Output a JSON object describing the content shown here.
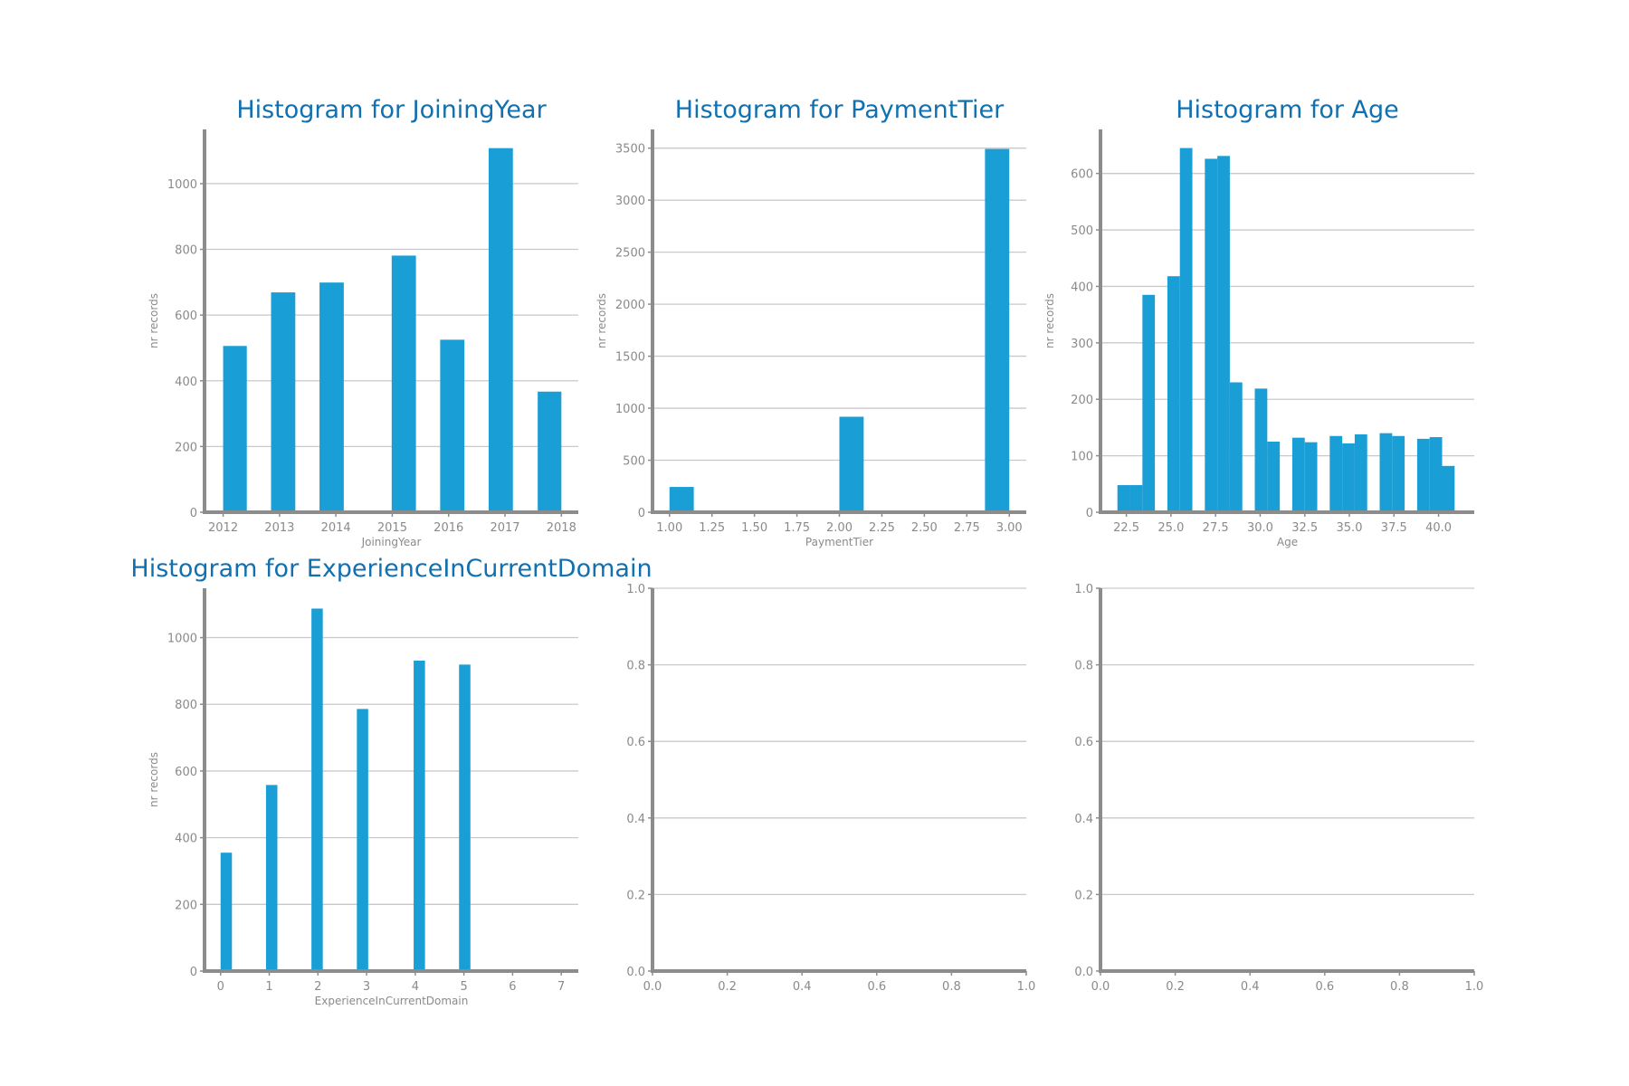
{
  "figure": {
    "bar_color": "#1a9ed6",
    "title_color": "#1170b0",
    "axis_color": "#8c8c8c",
    "grid_color": "#c9c9c9",
    "text_color": "#8a8a8a"
  },
  "chart_data": [
    {
      "type": "bar",
      "title": "Histogram for JoiningYear",
      "xlabel": "JoiningYear",
      "ylabel": "nr records",
      "xlim": [
        2011.67,
        2018.3
      ],
      "ylim": [
        0,
        1165
      ],
      "xticks": [
        2012,
        2013,
        2014,
        2015,
        2016,
        2017,
        2018
      ],
      "xtick_labels": [
        "2012",
        "2013",
        "2014",
        "2015",
        "2016",
        "2017",
        "2018"
      ],
      "yticks": [
        0,
        200,
        400,
        600,
        800,
        1000
      ],
      "ytick_labels": [
        "0",
        "200",
        "400",
        "600",
        "800",
        "1000"
      ],
      "grid": true,
      "bars": [
        {
          "x0": 2012.0,
          "x1": 2012.42,
          "value": 506
        },
        {
          "x0": 2012.85,
          "x1": 2013.28,
          "value": 669
        },
        {
          "x0": 2013.71,
          "x1": 2014.14,
          "value": 699
        },
        {
          "x0": 2014.99,
          "x1": 2015.42,
          "value": 781
        },
        {
          "x0": 2015.85,
          "x1": 2016.28,
          "value": 525
        },
        {
          "x0": 2016.71,
          "x1": 2017.14,
          "value": 1108
        },
        {
          "x0": 2017.58,
          "x1": 2018.0,
          "value": 367
        }
      ]
    },
    {
      "type": "bar",
      "title": "Histogram for PaymentTier",
      "xlabel": "PaymentTier",
      "ylabel": "nr records",
      "xlim": [
        0.9,
        3.1
      ],
      "ylim": [
        0,
        3680
      ],
      "xticks": [
        1.0,
        1.25,
        1.5,
        1.75,
        2.0,
        2.25,
        2.5,
        2.75,
        3.0
      ],
      "xtick_labels": [
        "1.00",
        "1.25",
        "1.50",
        "1.75",
        "2.00",
        "2.25",
        "2.50",
        "2.75",
        "3.00"
      ],
      "yticks": [
        0,
        500,
        1000,
        1500,
        2000,
        2500,
        3000,
        3500
      ],
      "ytick_labels": [
        "0",
        "500",
        "1000",
        "1500",
        "2000",
        "2500",
        "3000",
        "3500"
      ],
      "grid": true,
      "bars": [
        {
          "x0": 1.0,
          "x1": 1.143,
          "value": 243
        },
        {
          "x0": 2.0,
          "x1": 2.143,
          "value": 918
        },
        {
          "x0": 2.857,
          "x1": 3.0,
          "value": 3492
        }
      ]
    },
    {
      "type": "bar",
      "title": "Histogram for Age",
      "xlabel": "Age",
      "ylabel": "nr records",
      "xlim": [
        21.05,
        42.0
      ],
      "ylim": [
        0,
        678
      ],
      "xticks": [
        22.5,
        25.0,
        27.5,
        30.0,
        32.5,
        35.0,
        37.5,
        40.0
      ],
      "xtick_labels": [
        "22.5",
        "25.0",
        "27.5",
        "30.0",
        "32.5",
        "35.0",
        "37.5",
        "40.0"
      ],
      "yticks": [
        0,
        100,
        200,
        300,
        400,
        500,
        600
      ],
      "ytick_labels": [
        "0",
        "100",
        "200",
        "300",
        "400",
        "500",
        "600"
      ],
      "grid": true,
      "bars": [
        {
          "x0": 22.0,
          "x1": 22.7,
          "value": 48
        },
        {
          "x0": 22.7,
          "x1": 23.4,
          "value": 48
        },
        {
          "x0": 23.4,
          "x1": 24.1,
          "value": 385
        },
        {
          "x0": 24.8,
          "x1": 25.5,
          "value": 418
        },
        {
          "x0": 25.5,
          "x1": 26.2,
          "value": 645
        },
        {
          "x0": 26.9,
          "x1": 27.6,
          "value": 626
        },
        {
          "x0": 27.6,
          "x1": 28.3,
          "value": 631
        },
        {
          "x0": 28.3,
          "x1": 29.0,
          "value": 230
        },
        {
          "x0": 29.7,
          "x1": 30.4,
          "value": 219
        },
        {
          "x0": 30.4,
          "x1": 31.1,
          "value": 125
        },
        {
          "x0": 31.8,
          "x1": 32.5,
          "value": 132
        },
        {
          "x0": 32.5,
          "x1": 33.2,
          "value": 124
        },
        {
          "x0": 33.9,
          "x1": 34.6,
          "value": 135
        },
        {
          "x0": 34.6,
          "x1": 35.3,
          "value": 122
        },
        {
          "x0": 35.3,
          "x1": 36.0,
          "value": 138
        },
        {
          "x0": 36.7,
          "x1": 37.4,
          "value": 140
        },
        {
          "x0": 37.4,
          "x1": 38.1,
          "value": 135
        },
        {
          "x0": 38.8,
          "x1": 39.5,
          "value": 130
        },
        {
          "x0": 39.5,
          "x1": 40.2,
          "value": 133
        },
        {
          "x0": 40.2,
          "x1": 40.9,
          "value": 82
        }
      ]
    },
    {
      "type": "bar",
      "title": "Histogram for ExperienceInCurrentDomain",
      "xlabel": "ExperienceInCurrentDomain",
      "ylabel": "nr records",
      "xlim": [
        -0.33,
        7.35
      ],
      "ylim": [
        0,
        1148
      ],
      "xticks": [
        0,
        1,
        2,
        3,
        4,
        5,
        6,
        7
      ],
      "xtick_labels": [
        "0",
        "1",
        "2",
        "3",
        "4",
        "5",
        "6",
        "7"
      ],
      "yticks": [
        0,
        200,
        400,
        600,
        800,
        1000
      ],
      "ytick_labels": [
        "0",
        "200",
        "400",
        "600",
        "800",
        "1000"
      ],
      "grid": true,
      "bars": [
        {
          "x0": 0.0,
          "x1": 0.233,
          "value": 355
        },
        {
          "x0": 0.933,
          "x1": 1.167,
          "value": 558
        },
        {
          "x0": 1.867,
          "x1": 2.1,
          "value": 1087
        },
        {
          "x0": 2.8,
          "x1": 3.033,
          "value": 786
        },
        {
          "x0": 3.967,
          "x1": 4.2,
          "value": 931
        },
        {
          "x0": 4.9,
          "x1": 5.133,
          "value": 919
        },
        {
          "x0": 5.833,
          "x1": 6.067,
          "value": 4
        },
        {
          "x0": 6.767,
          "x1": 7.0,
          "value": 4
        }
      ]
    },
    {
      "type": "bar",
      "title": "",
      "xlabel": "",
      "ylabel": "",
      "xlim": [
        0,
        1
      ],
      "ylim": [
        0,
        1
      ],
      "xticks": [
        0,
        0.2,
        0.4,
        0.6,
        0.8,
        1.0
      ],
      "xtick_labels": [
        "0.0",
        "0.2",
        "0.4",
        "0.6",
        "0.8",
        "1.0"
      ],
      "yticks": [
        0,
        0.2,
        0.4,
        0.6,
        0.8,
        1.0
      ],
      "ytick_labels": [
        "0.0",
        "0.2",
        "0.4",
        "0.6",
        "0.8",
        "1.0"
      ],
      "grid": true,
      "bars": []
    },
    {
      "type": "bar",
      "title": "",
      "xlabel": "",
      "ylabel": "",
      "xlim": [
        0,
        1
      ],
      "ylim": [
        0,
        1
      ],
      "xticks": [
        0,
        0.2,
        0.4,
        0.6,
        0.8,
        1.0
      ],
      "xtick_labels": [
        "0.0",
        "0.2",
        "0.4",
        "0.6",
        "0.8",
        "1.0"
      ],
      "yticks": [
        0,
        0.2,
        0.4,
        0.6,
        0.8,
        1.0
      ],
      "ytick_labels": [
        "0.0",
        "0.2",
        "0.4",
        "0.6",
        "0.8",
        "1.0"
      ],
      "grid": true,
      "bars": []
    }
  ]
}
